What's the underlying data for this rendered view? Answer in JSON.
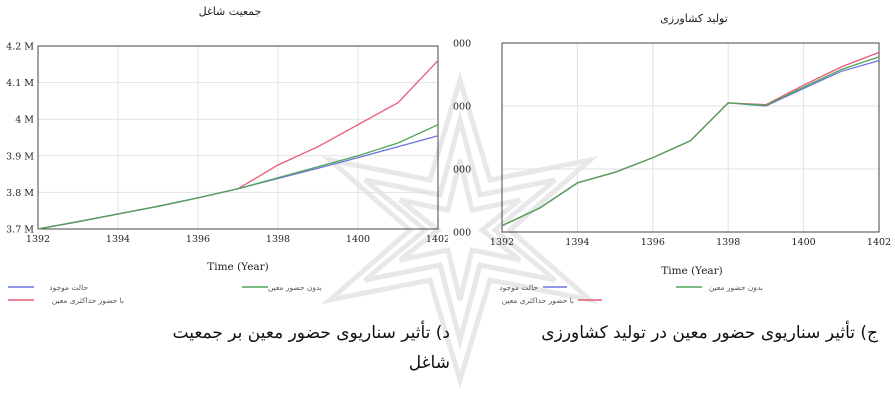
{
  "chart_data": [
    {
      "type": "line",
      "title": "جمعیت شاغل",
      "xlabel": "Time (Year)",
      "x_ticks": [
        "1392",
        "1394",
        "1396",
        "1398",
        "1400",
        "1402"
      ],
      "y_ticks": [
        "3.7 M",
        "3.8 M",
        "3.9 M",
        "4 M",
        "4.1 M",
        "4.2 M"
      ],
      "xlim": [
        1392,
        1402
      ],
      "ylim": [
        3.7,
        4.2
      ],
      "x": [
        1392,
        1393,
        1394,
        1395,
        1396,
        1397,
        1398,
        1399,
        1400,
        1401,
        1402
      ],
      "series": [
        {
          "name": "حالت موجود",
          "color": "#6c75e0",
          "values": [
            3.7,
            3.72,
            3.741,
            3.762,
            3.785,
            3.81,
            3.838,
            3.866,
            3.895,
            3.925,
            3.955
          ]
        },
        {
          "name": "با حضور حداکثری معین",
          "color": "#e85a78",
          "values": [
            3.7,
            3.72,
            3.741,
            3.762,
            3.785,
            3.81,
            3.875,
            3.925,
            3.985,
            4.045,
            4.16
          ]
        },
        {
          "name": "بدون حضور معین",
          "color": "#4ea55a",
          "values": [
            3.7,
            3.72,
            3.741,
            3.762,
            3.785,
            3.81,
            3.84,
            3.87,
            3.9,
            3.935,
            3.985
          ]
        }
      ],
      "grid": true,
      "legend_position": "bottom"
    },
    {
      "type": "line",
      "title": "تولید کشاورزی",
      "xlabel": "Time (Year)",
      "x_ticks": [
        "1392",
        "1394",
        "1396",
        "1398",
        "1400",
        "1402"
      ],
      "y_ticks": [
        "000",
        "000",
        "000",
        "000"
      ],
      "xlim": [
        1392,
        1402
      ],
      "ylim": [
        0,
        3
      ],
      "x": [
        1392,
        1393,
        1394,
        1395,
        1396,
        1397,
        1398,
        1399,
        1400,
        1401,
        1402
      ],
      "series": [
        {
          "name": "حالت موجود",
          "color": "#6c75e0",
          "values": [
            0.1,
            0.38,
            0.78,
            0.95,
            1.18,
            1.45,
            2.05,
            2.0,
            2.28,
            2.55,
            2.72
          ]
        },
        {
          "name": "با حضور حداکثری معین",
          "color": "#e85a78",
          "values": [
            0.1,
            0.38,
            0.78,
            0.95,
            1.18,
            1.45,
            2.05,
            2.02,
            2.33,
            2.62,
            2.85
          ]
        },
        {
          "name": "بدون حضور معین",
          "color": "#4ea55a",
          "values": [
            0.1,
            0.38,
            0.78,
            0.95,
            1.18,
            1.45,
            2.05,
            2.01,
            2.3,
            2.58,
            2.78
          ]
        }
      ],
      "grid": true,
      "legend_position": "bottom"
    }
  ],
  "captions": {
    "left": "د) تأثیر سناریوی حضور معین بر جمعیت شاغل",
    "right": "ج) تأثیر سناریوی حضور معین در تولید کشاورزی"
  }
}
